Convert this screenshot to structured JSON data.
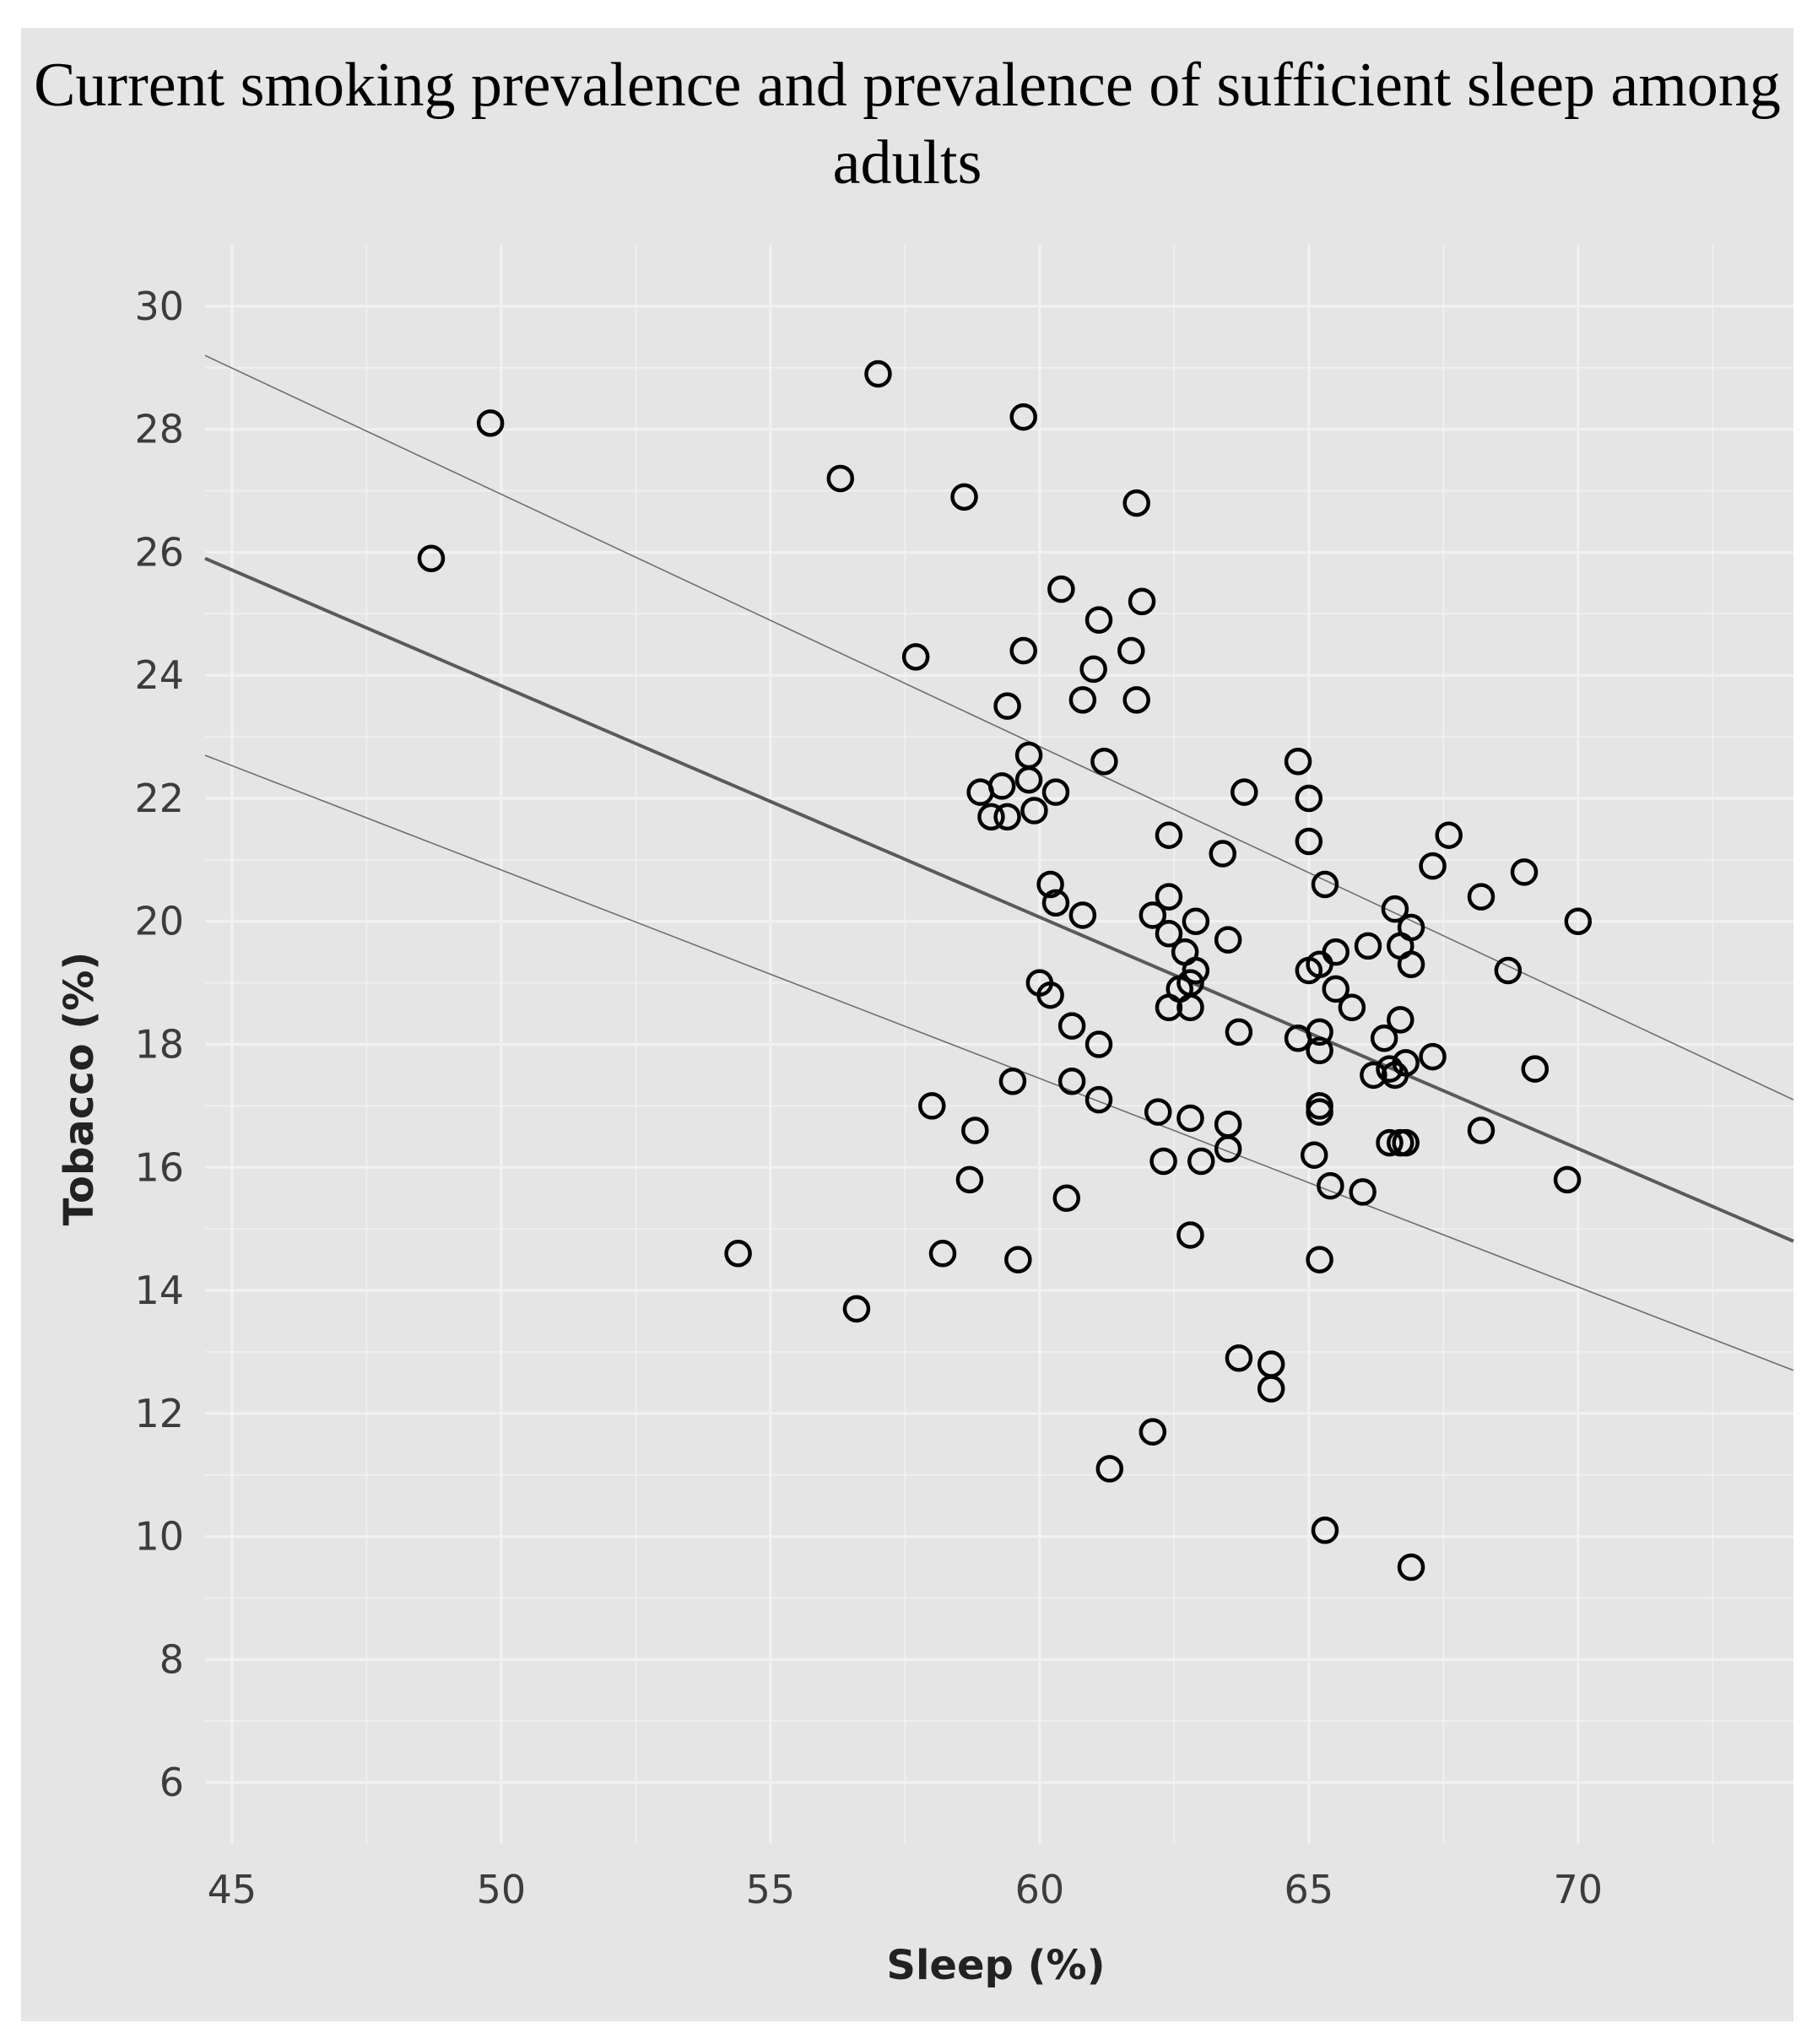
{
  "chart_data": {
    "type": "scatter",
    "title": "Current smoking prevalence and prevalence of sufficient sleep among adults",
    "xlabel": "Sleep (%)",
    "ylabel": "Tobacco (%)",
    "xlim": [
      44.5,
      74
    ],
    "ylim": [
      5,
      31
    ],
    "xticks": [
      45,
      50,
      55,
      60,
      65,
      70
    ],
    "yticks": [
      6,
      8,
      10,
      12,
      14,
      16,
      18,
      20,
      22,
      24,
      26,
      28,
      30
    ],
    "grid": true,
    "legend": "none",
    "colors": {
      "panel": "#e5e5e5",
      "grid": "#f2f2f2",
      "marker": "#000000",
      "fit_line": "#5a5a5a",
      "ci_line": "#6e6e6e"
    },
    "points": [
      {
        "x": 48.7,
        "y": 25.9
      },
      {
        "x": 49.8,
        "y": 28.1
      },
      {
        "x": 54.4,
        "y": 14.6
      },
      {
        "x": 56.3,
        "y": 27.2
      },
      {
        "x": 56.6,
        "y": 13.7
      },
      {
        "x": 57.0,
        "y": 28.9
      },
      {
        "x": 57.7,
        "y": 24.3
      },
      {
        "x": 58.0,
        "y": 17.0
      },
      {
        "x": 58.2,
        "y": 14.6
      },
      {
        "x": 58.6,
        "y": 26.9
      },
      {
        "x": 58.7,
        "y": 15.8
      },
      {
        "x": 58.8,
        "y": 16.6
      },
      {
        "x": 58.9,
        "y": 22.1
      },
      {
        "x": 59.1,
        "y": 21.7
      },
      {
        "x": 59.3,
        "y": 22.2
      },
      {
        "x": 59.4,
        "y": 21.7
      },
      {
        "x": 59.4,
        "y": 23.5
      },
      {
        "x": 59.5,
        "y": 17.4
      },
      {
        "x": 59.6,
        "y": 14.5
      },
      {
        "x": 59.7,
        "y": 28.2
      },
      {
        "x": 59.7,
        "y": 24.4
      },
      {
        "x": 59.8,
        "y": 22.7
      },
      {
        "x": 59.8,
        "y": 22.3
      },
      {
        "x": 59.9,
        "y": 21.8
      },
      {
        "x": 60.0,
        "y": 19.0
      },
      {
        "x": 60.2,
        "y": 18.8
      },
      {
        "x": 60.2,
        "y": 20.6
      },
      {
        "x": 60.3,
        "y": 20.3
      },
      {
        "x": 60.3,
        "y": 22.1
      },
      {
        "x": 60.4,
        "y": 25.4
      },
      {
        "x": 60.5,
        "y": 15.5
      },
      {
        "x": 60.6,
        "y": 18.3
      },
      {
        "x": 60.6,
        "y": 17.4
      },
      {
        "x": 60.8,
        "y": 20.1
      },
      {
        "x": 60.8,
        "y": 23.6
      },
      {
        "x": 61.0,
        "y": 24.1
      },
      {
        "x": 61.1,
        "y": 24.9
      },
      {
        "x": 61.1,
        "y": 18.0
      },
      {
        "x": 61.1,
        "y": 17.1
      },
      {
        "x": 61.2,
        "y": 22.6
      },
      {
        "x": 61.3,
        "y": 11.1
      },
      {
        "x": 61.7,
        "y": 24.4
      },
      {
        "x": 61.8,
        "y": 23.6
      },
      {
        "x": 61.8,
        "y": 26.8
      },
      {
        "x": 61.9,
        "y": 25.2
      },
      {
        "x": 62.1,
        "y": 11.7
      },
      {
        "x": 62.1,
        "y": 20.1
      },
      {
        "x": 62.2,
        "y": 16.9
      },
      {
        "x": 62.3,
        "y": 16.1
      },
      {
        "x": 62.4,
        "y": 18.6
      },
      {
        "x": 62.4,
        "y": 21.4
      },
      {
        "x": 62.4,
        "y": 20.4
      },
      {
        "x": 62.4,
        "y": 19.8
      },
      {
        "x": 62.6,
        "y": 18.9
      },
      {
        "x": 62.7,
        "y": 19.5
      },
      {
        "x": 62.8,
        "y": 19.0
      },
      {
        "x": 62.8,
        "y": 14.9
      },
      {
        "x": 62.8,
        "y": 16.8
      },
      {
        "x": 62.8,
        "y": 18.6
      },
      {
        "x": 62.9,
        "y": 20.0
      },
      {
        "x": 62.9,
        "y": 19.2
      },
      {
        "x": 63.0,
        "y": 16.1
      },
      {
        "x": 63.4,
        "y": 21.1
      },
      {
        "x": 63.5,
        "y": 19.7
      },
      {
        "x": 63.5,
        "y": 16.7
      },
      {
        "x": 63.5,
        "y": 16.3
      },
      {
        "x": 63.7,
        "y": 18.2
      },
      {
        "x": 63.7,
        "y": 12.9
      },
      {
        "x": 63.8,
        "y": 22.1
      },
      {
        "x": 64.3,
        "y": 12.8
      },
      {
        "x": 64.3,
        "y": 12.4
      },
      {
        "x": 64.8,
        "y": 18.1
      },
      {
        "x": 64.8,
        "y": 22.6
      },
      {
        "x": 65.0,
        "y": 19.2
      },
      {
        "x": 65.0,
        "y": 22.0
      },
      {
        "x": 65.0,
        "y": 21.3
      },
      {
        "x": 65.1,
        "y": 16.2
      },
      {
        "x": 65.2,
        "y": 19.3
      },
      {
        "x": 65.2,
        "y": 18.2
      },
      {
        "x": 65.2,
        "y": 17.9
      },
      {
        "x": 65.2,
        "y": 17.0
      },
      {
        "x": 65.2,
        "y": 16.9
      },
      {
        "x": 65.2,
        "y": 14.5
      },
      {
        "x": 65.3,
        "y": 20.6
      },
      {
        "x": 65.3,
        "y": 10.1
      },
      {
        "x": 65.4,
        "y": 15.7
      },
      {
        "x": 65.5,
        "y": 19.5
      },
      {
        "x": 65.5,
        "y": 18.9
      },
      {
        "x": 65.8,
        "y": 18.6
      },
      {
        "x": 66.0,
        "y": 15.6
      },
      {
        "x": 66.1,
        "y": 19.6
      },
      {
        "x": 66.2,
        "y": 17.5
      },
      {
        "x": 66.4,
        "y": 18.1
      },
      {
        "x": 66.5,
        "y": 17.6
      },
      {
        "x": 66.5,
        "y": 16.4
      },
      {
        "x": 66.6,
        "y": 20.2
      },
      {
        "x": 66.6,
        "y": 17.5
      },
      {
        "x": 66.7,
        "y": 19.6
      },
      {
        "x": 66.7,
        "y": 18.4
      },
      {
        "x": 66.7,
        "y": 16.4
      },
      {
        "x": 66.8,
        "y": 16.4
      },
      {
        "x": 66.8,
        "y": 17.7
      },
      {
        "x": 66.9,
        "y": 19.9
      },
      {
        "x": 66.9,
        "y": 19.3
      },
      {
        "x": 66.9,
        "y": 9.5
      },
      {
        "x": 67.3,
        "y": 20.9
      },
      {
        "x": 67.3,
        "y": 17.8
      },
      {
        "x": 67.6,
        "y": 21.4
      },
      {
        "x": 68.2,
        "y": 20.4
      },
      {
        "x": 68.2,
        "y": 16.6
      },
      {
        "x": 68.7,
        "y": 19.2
      },
      {
        "x": 69.0,
        "y": 20.8
      },
      {
        "x": 69.2,
        "y": 17.6
      },
      {
        "x": 69.8,
        "y": 15.8
      },
      {
        "x": 70.0,
        "y": 20.0
      }
    ],
    "fit_line": {
      "x": [
        44.5,
        74.0
      ],
      "y": [
        25.9,
        14.8
      ]
    },
    "ci_upper": {
      "x": [
        44.5,
        74.0
      ],
      "y": [
        29.2,
        17.1
      ]
    },
    "ci_lower": {
      "x": [
        44.5,
        74.0
      ],
      "y": [
        22.7,
        12.7
      ]
    }
  }
}
